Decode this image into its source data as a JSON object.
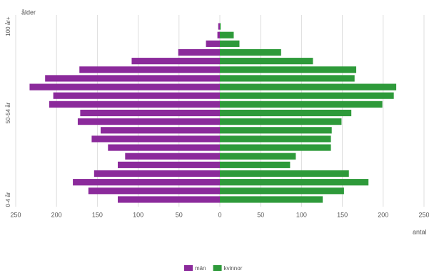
{
  "chart_data": {
    "type": "pyramid",
    "y_label": "ålder",
    "x_label": "antal",
    "categories": [
      "100 år+",
      null,
      null,
      null,
      null,
      null,
      null,
      null,
      null,
      null,
      "50-54 år",
      null,
      null,
      null,
      null,
      null,
      null,
      null,
      null,
      null,
      "0-4 år"
    ],
    "series": [
      {
        "name": "män",
        "color": "#8b2a9b",
        "values": [
          -2,
          -3,
          -17,
          -51,
          -108,
          -172,
          -214,
          -233,
          -204,
          -209,
          -171,
          -174,
          -146,
          -157,
          -137,
          -116,
          -125,
          -154,
          -180,
          -161,
          -125
        ]
      },
      {
        "name": "kvinnor",
        "color": "#2e9a3a",
        "values": [
          1,
          17,
          24,
          75,
          114,
          167,
          165,
          216,
          213,
          199,
          161,
          149,
          137,
          136,
          136,
          93,
          86,
          158,
          182,
          152,
          126
        ]
      }
    ],
    "xlim": [
      -250,
      250
    ],
    "xticks": [
      {
        "value": -250,
        "label": "250"
      },
      {
        "value": -200,
        "label": "200"
      },
      {
        "value": -150,
        "label": "150"
      },
      {
        "value": -100,
        "label": "100"
      },
      {
        "value": -50,
        "label": "50"
      },
      0,
      50,
      100,
      150,
      200,
      250
    ],
    "grid": true
  }
}
